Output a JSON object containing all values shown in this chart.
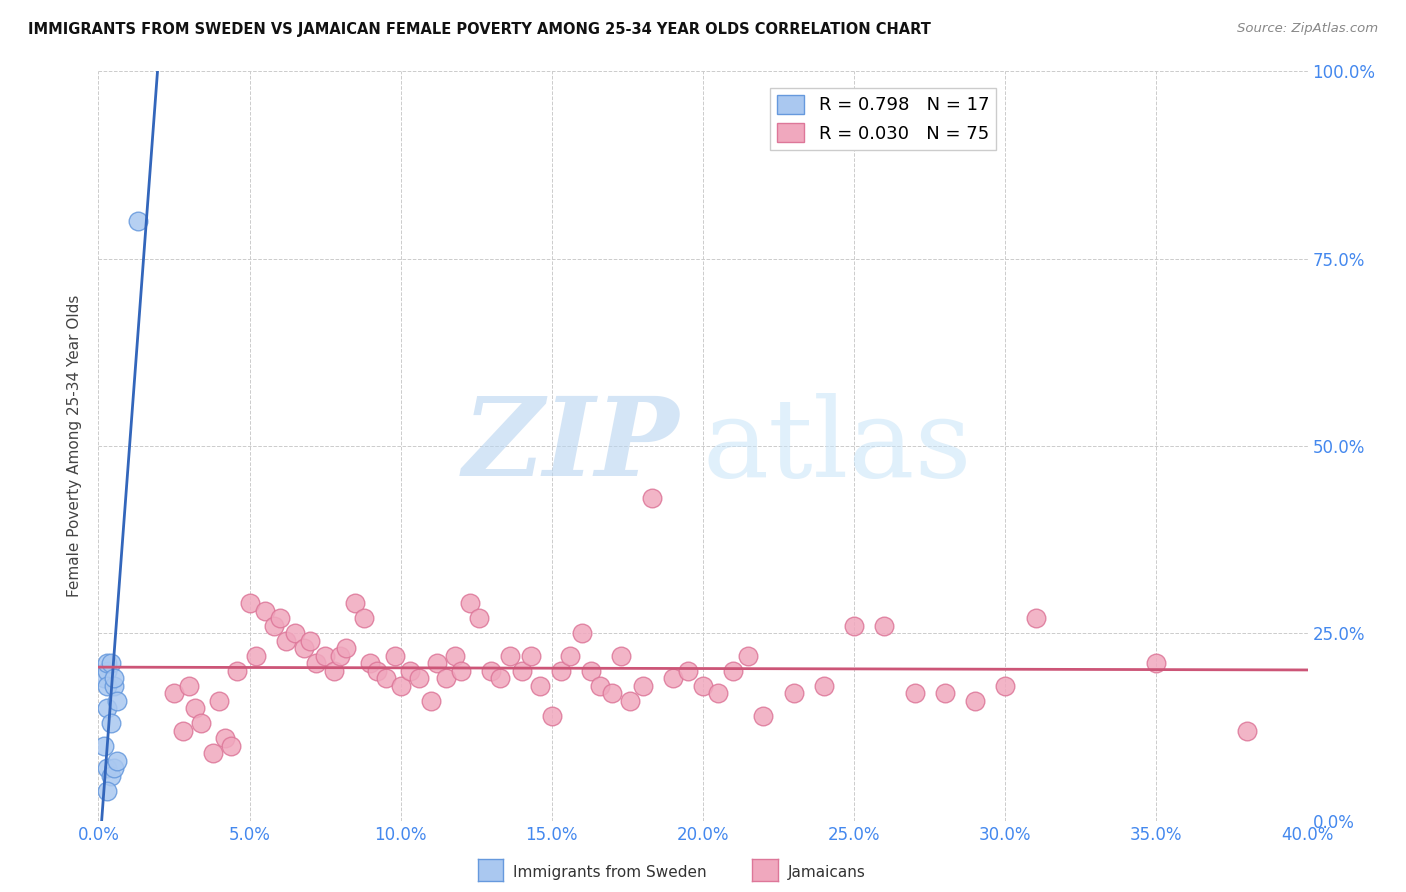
{
  "title": "IMMIGRANTS FROM SWEDEN VS JAMAICAN FEMALE POVERTY AMONG 25-34 YEAR OLDS CORRELATION CHART",
  "source": "Source: ZipAtlas.com",
  "ylabel": "Female Poverty Among 25-34 Year Olds",
  "xlim": [
    0.0,
    0.4
  ],
  "ylim": [
    0.0,
    1.0
  ],
  "xticks": [
    0.0,
    0.05,
    0.1,
    0.15,
    0.2,
    0.25,
    0.3,
    0.35,
    0.4
  ],
  "yticks": [
    0.0,
    0.25,
    0.5,
    0.75,
    1.0
  ],
  "sweden_color": "#aac8f0",
  "sweden_edge_color": "#6699dd",
  "sweden_line_color": "#3366bb",
  "jamaican_color": "#f0a8be",
  "jamaican_edge_color": "#dd7799",
  "jamaican_line_color": "#cc5577",
  "right_axis_color": "#4488ee",
  "bottom_axis_color": "#4488ee",
  "background_color": "#ffffff",
  "grid_color": "#cccccc",
  "watermark_zip_color": "#b8d4f0",
  "watermark_atlas_color": "#c8e4f8",
  "sweden_label": "Immigrants from Sweden",
  "jamaican_label": "Jamaicans",
  "sweden_R": "0.798",
  "sweden_N": "17",
  "jamaican_R": "0.030",
  "jamaican_N": "75",
  "sweden_x": [
    0.002,
    0.003,
    0.003,
    0.003,
    0.003,
    0.003,
    0.004,
    0.004,
    0.004,
    0.005,
    0.005,
    0.005,
    0.006,
    0.006,
    0.002,
    0.013,
    0.003
  ],
  "sweden_y": [
    0.19,
    0.2,
    0.21,
    0.15,
    0.18,
    0.07,
    0.13,
    0.21,
    0.06,
    0.18,
    0.19,
    0.07,
    0.16,
    0.08,
    0.1,
    0.8,
    0.04
  ],
  "jamaican_x": [
    0.025,
    0.028,
    0.03,
    0.032,
    0.034,
    0.038,
    0.04,
    0.042,
    0.044,
    0.046,
    0.05,
    0.052,
    0.055,
    0.058,
    0.06,
    0.062,
    0.065,
    0.068,
    0.07,
    0.072,
    0.075,
    0.078,
    0.08,
    0.082,
    0.085,
    0.088,
    0.09,
    0.092,
    0.095,
    0.098,
    0.1,
    0.103,
    0.106,
    0.11,
    0.112,
    0.115,
    0.118,
    0.12,
    0.123,
    0.126,
    0.13,
    0.133,
    0.136,
    0.14,
    0.143,
    0.146,
    0.15,
    0.153,
    0.156,
    0.16,
    0.163,
    0.166,
    0.17,
    0.173,
    0.176,
    0.18,
    0.183,
    0.19,
    0.195,
    0.2,
    0.205,
    0.21,
    0.215,
    0.22,
    0.23,
    0.24,
    0.25,
    0.26,
    0.27,
    0.28,
    0.29,
    0.3,
    0.31,
    0.35,
    0.38
  ],
  "jamaican_y": [
    0.17,
    0.12,
    0.18,
    0.15,
    0.13,
    0.09,
    0.16,
    0.11,
    0.1,
    0.2,
    0.29,
    0.22,
    0.28,
    0.26,
    0.27,
    0.24,
    0.25,
    0.23,
    0.24,
    0.21,
    0.22,
    0.2,
    0.22,
    0.23,
    0.29,
    0.27,
    0.21,
    0.2,
    0.19,
    0.22,
    0.18,
    0.2,
    0.19,
    0.16,
    0.21,
    0.19,
    0.22,
    0.2,
    0.29,
    0.27,
    0.2,
    0.19,
    0.22,
    0.2,
    0.22,
    0.18,
    0.14,
    0.2,
    0.22,
    0.25,
    0.2,
    0.18,
    0.17,
    0.22,
    0.16,
    0.18,
    0.43,
    0.19,
    0.2,
    0.18,
    0.17,
    0.2,
    0.22,
    0.14,
    0.17,
    0.18,
    0.26,
    0.26,
    0.17,
    0.17,
    0.16,
    0.18,
    0.27,
    0.21,
    0.12
  ]
}
